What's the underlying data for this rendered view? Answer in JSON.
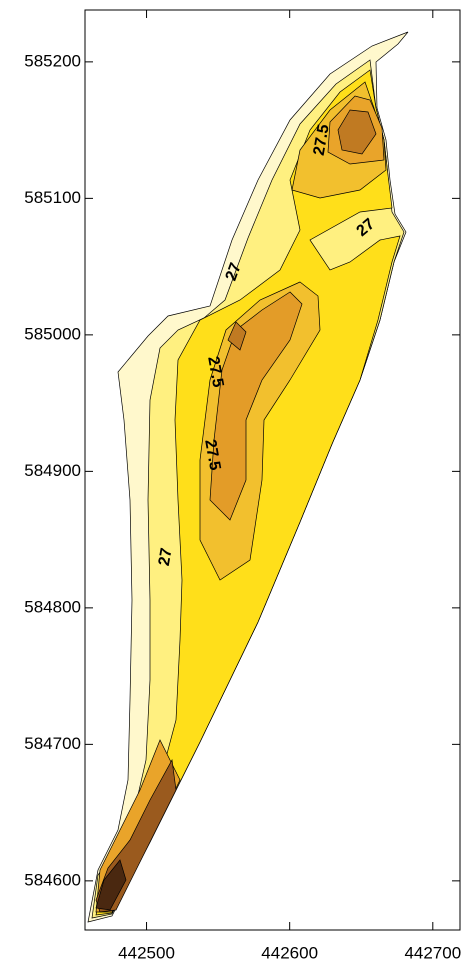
{
  "chart_data": {
    "type": "contour",
    "xlim": [
      442457,
      442719
    ],
    "ylim": [
      584564,
      585238
    ],
    "xticks": [
      442500,
      442600,
      442700
    ],
    "yticks": [
      584600,
      584700,
      584800,
      584900,
      585000,
      585100,
      585200
    ],
    "annotations": [
      "27.5",
      "27",
      "27",
      "27.5",
      "27.5",
      "27"
    ]
  }
}
